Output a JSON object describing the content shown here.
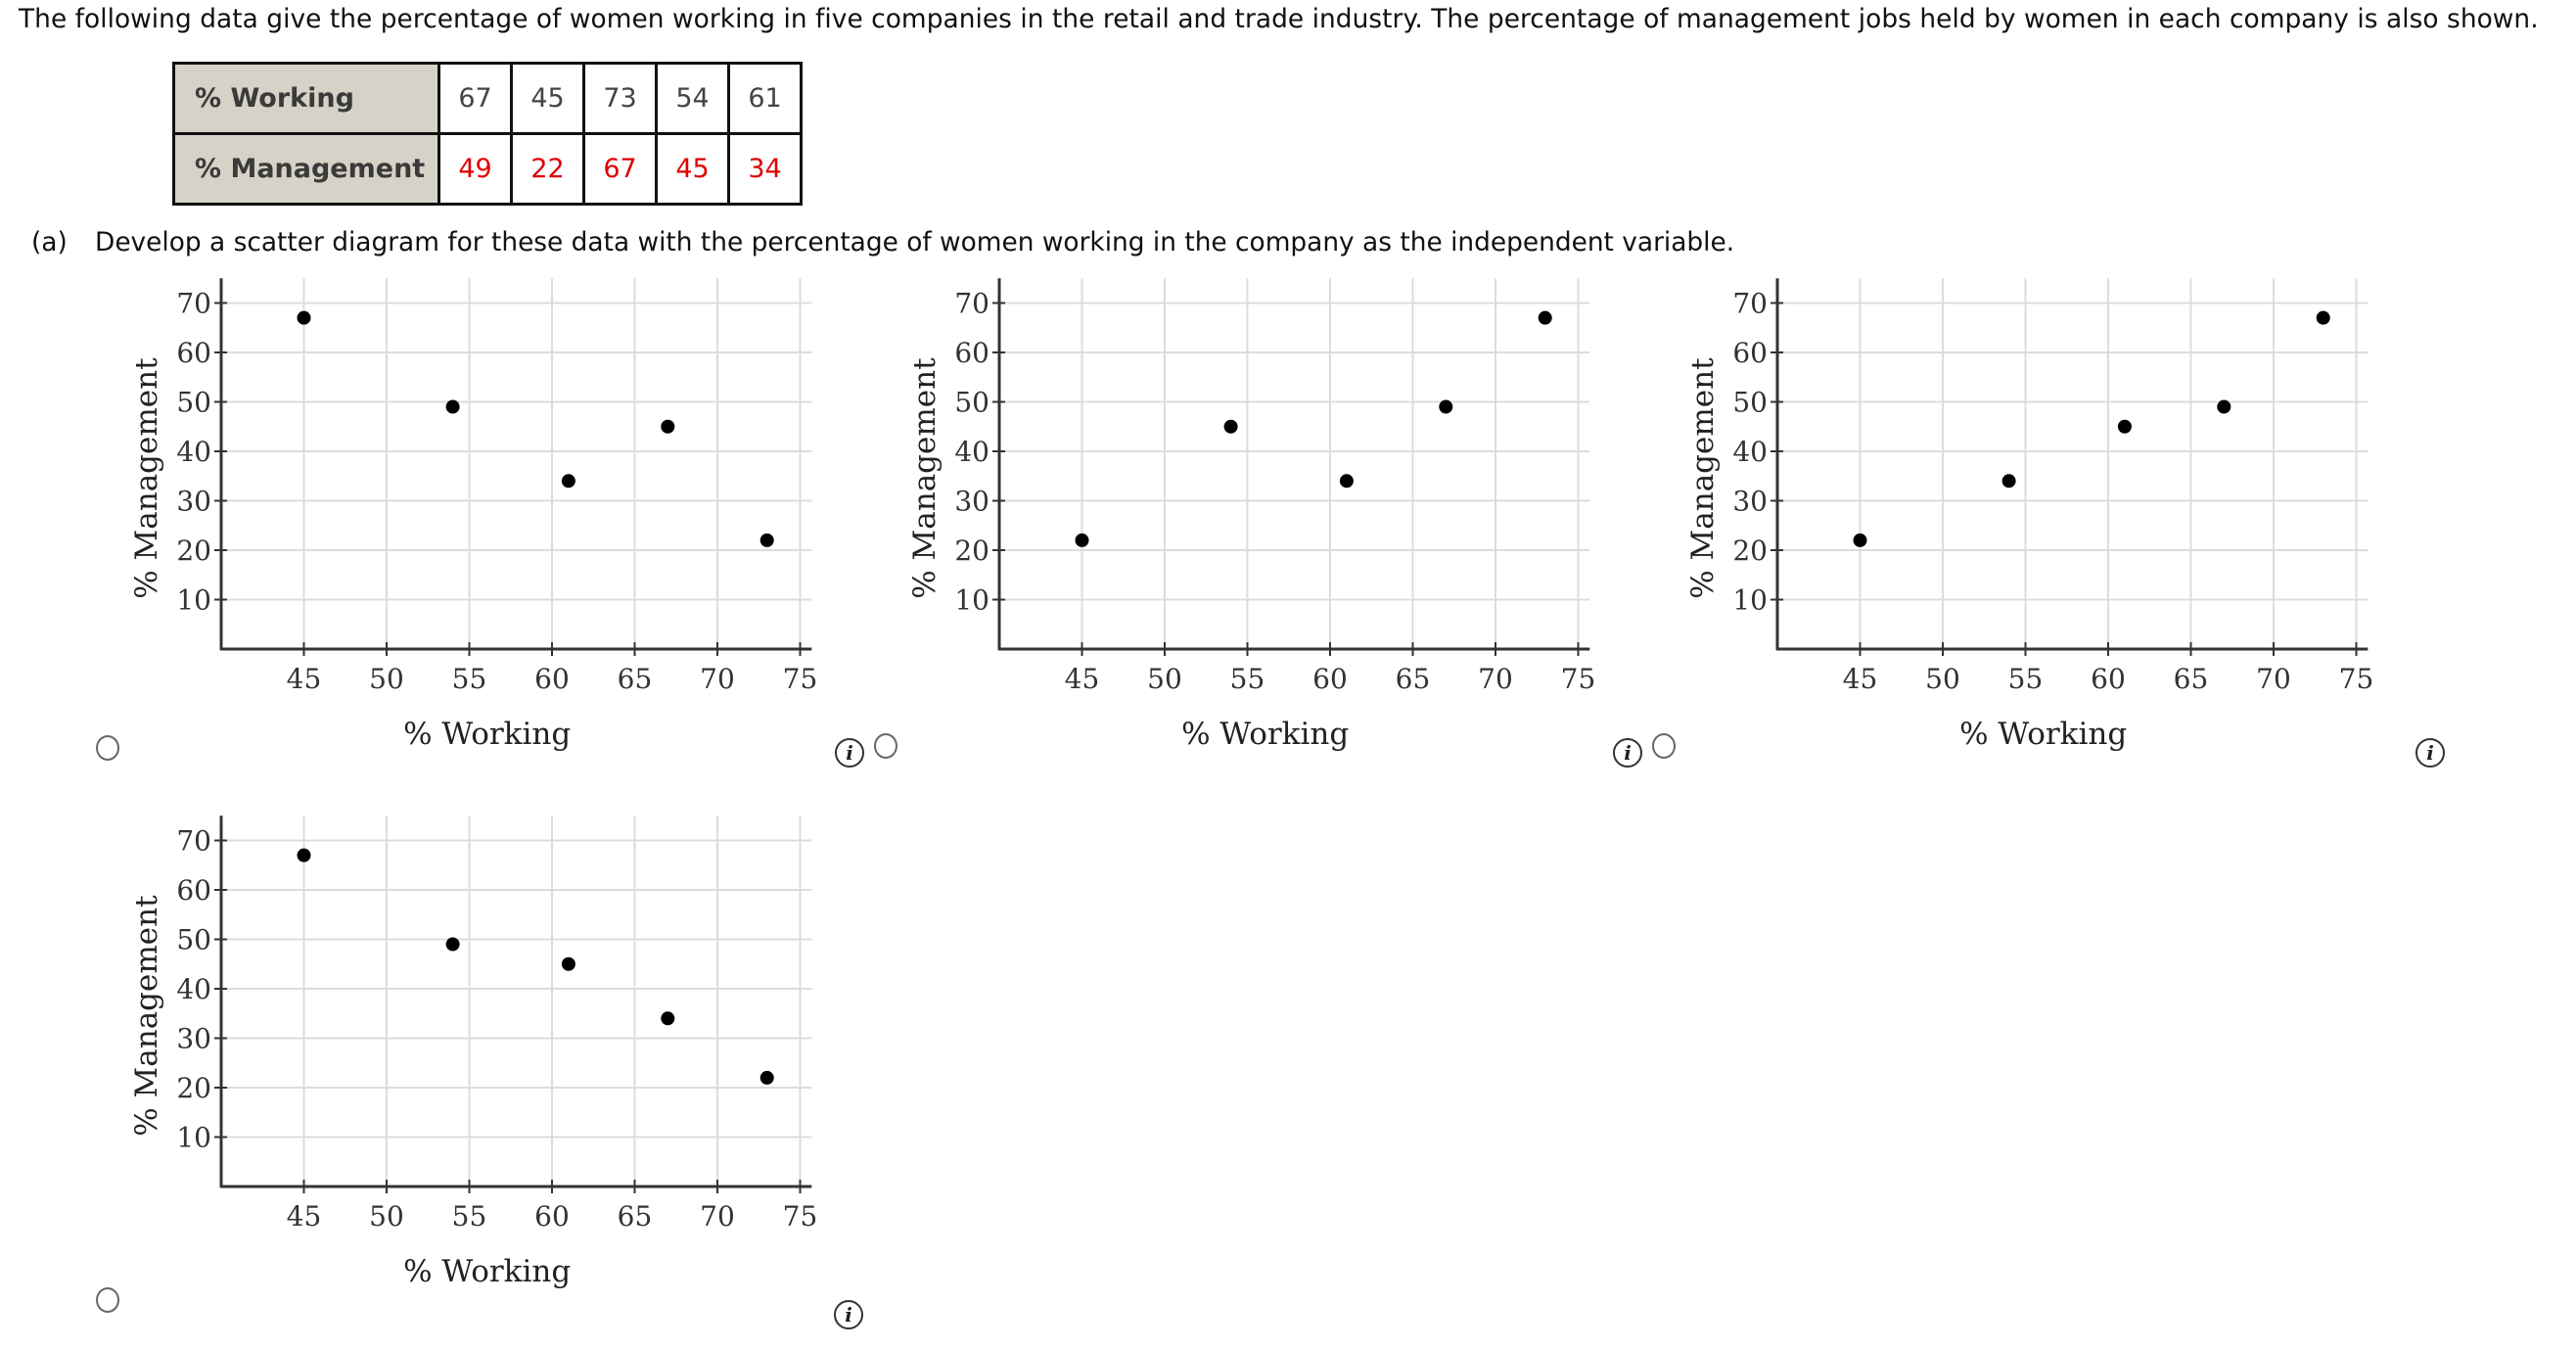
{
  "intro_text": "The following data give the percentage of women working in five companies in the retail and trade industry. The percentage of management jobs held by women in each company is also shown.",
  "table": {
    "rows": [
      {
        "label": "% Working",
        "values": [
          "67",
          "45",
          "73",
          "54",
          "61"
        ]
      },
      {
        "label": "% Management",
        "values": [
          "49",
          "22",
          "67",
          "45",
          "34"
        ]
      }
    ],
    "value_colors": {
      "row0": "#444444",
      "row1": "#e00000"
    }
  },
  "part_a": {
    "label": "(a)",
    "prompt": "Develop a scatter diagram for these data with the percentage of women working in the company as the independent variable."
  },
  "options": [
    {
      "id": "option-1",
      "selected": false,
      "info_icon": "i"
    },
    {
      "id": "option-2",
      "selected": false,
      "info_icon": "i"
    },
    {
      "id": "option-3",
      "selected": false,
      "info_icon": "i"
    },
    {
      "id": "option-4",
      "selected": false,
      "info_icon": "i"
    }
  ],
  "chart_data": [
    {
      "type": "scatter",
      "title": "",
      "xlabel": "% Working",
      "ylabel": "% Management",
      "xlim": [
        40,
        75.7
      ],
      "ylim": [
        0,
        75
      ],
      "xticks": [
        45,
        50,
        55,
        60,
        65,
        70,
        75
      ],
      "yticks": [
        10,
        20,
        30,
        40,
        50,
        60,
        70
      ],
      "grid": true,
      "legend": null,
      "x": [
        45,
        54,
        61,
        67,
        73
      ],
      "y": [
        67,
        49,
        34,
        45,
        22
      ]
    },
    {
      "type": "scatter",
      "title": "",
      "xlabel": "% Working",
      "ylabel": "% Management",
      "xlim": [
        40,
        75.7
      ],
      "ylim": [
        0,
        75
      ],
      "xticks": [
        45,
        50,
        55,
        60,
        65,
        70,
        75
      ],
      "yticks": [
        10,
        20,
        30,
        40,
        50,
        60,
        70
      ],
      "grid": true,
      "legend": null,
      "x": [
        45,
        54,
        61,
        67,
        73
      ],
      "y": [
        22,
        45,
        34,
        49,
        67
      ]
    },
    {
      "type": "scatter",
      "title": "",
      "xlabel": "% Working",
      "ylabel": "% Management",
      "xlim": [
        40,
        75.7
      ],
      "ylim": [
        0,
        75
      ],
      "xticks": [
        45,
        50,
        55,
        60,
        65,
        70,
        75
      ],
      "yticks": [
        10,
        20,
        30,
        40,
        50,
        60,
        70
      ],
      "grid": true,
      "legend": null,
      "x": [
        45,
        54,
        61,
        67,
        73
      ],
      "y": [
        22,
        34,
        45,
        49,
        67
      ]
    },
    {
      "type": "scatter",
      "title": "",
      "xlabel": "% Working",
      "ylabel": "% Management",
      "xlim": [
        40,
        75.7
      ],
      "ylim": [
        0,
        75
      ],
      "xticks": [
        45,
        50,
        55,
        60,
        65,
        70,
        75
      ],
      "yticks": [
        10,
        20,
        30,
        40,
        50,
        60,
        70
      ],
      "grid": true,
      "legend": null,
      "x": [
        45,
        54,
        61,
        67,
        73
      ],
      "y": [
        67,
        49,
        45,
        34,
        22
      ]
    }
  ]
}
